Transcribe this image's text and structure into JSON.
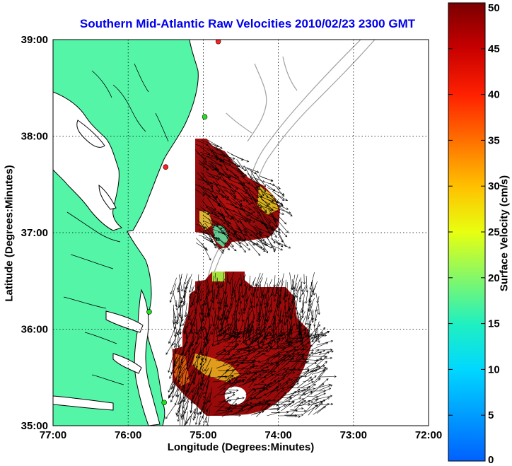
{
  "title": "Southern Mid-Atlantic Raw Velocities 2010/02/23 2300 GMT",
  "map": {
    "xlabel": "Longitude (Degrees:Minutes)",
    "ylabel": "Latitude (Degrees:Minutes)",
    "lon_ticks": [
      "77:00",
      "76:00",
      "75:00",
      "74:00",
      "73:00",
      "72:00"
    ],
    "lat_ticks": [
      "39:00",
      "38:00",
      "37:00",
      "36:00",
      "35:00"
    ],
    "lon_range": [
      -77,
      -72
    ],
    "lat_range": [
      35,
      39
    ],
    "grid": true,
    "colors": {
      "land": "#55f5a8",
      "coast": "#000000",
      "bathymetry": "#a0a0a0",
      "arrow": "#000000"
    },
    "stations": [
      {
        "lon": -74.8,
        "lat": 38.98,
        "color": "#ff2020"
      },
      {
        "lon": -74.98,
        "lat": 38.2,
        "color": "#20e020"
      },
      {
        "lon": -75.5,
        "lat": 37.68,
        "color": "#ff2020"
      },
      {
        "lon": -75.72,
        "lat": 36.18,
        "color": "#20e020"
      },
      {
        "lon": -75.52,
        "lat": 35.24,
        "color": "#20e020"
      }
    ]
  },
  "colorbar": {
    "label": "Surface Velocity (cm/s)",
    "ticks": [
      "0",
      "5",
      "10",
      "15",
      "20",
      "25",
      "30",
      "35",
      "40",
      "45",
      "50"
    ],
    "min": 0,
    "max": 50,
    "colormap": "jet"
  }
}
